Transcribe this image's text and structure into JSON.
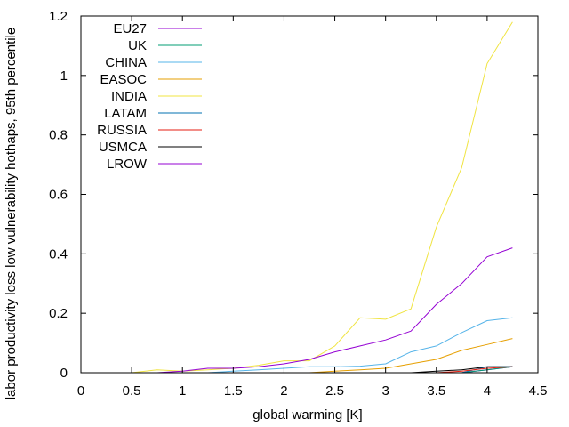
{
  "chart_data": {
    "type": "line",
    "title": "",
    "xlabel": "global warming [K]",
    "ylabel": "labor productivity loss low vulnerability hothaps, 95th percentile",
    "xlim": [
      0,
      4.5
    ],
    "ylim": [
      0,
      1.2
    ],
    "xticks": [
      0,
      0.5,
      1,
      1.5,
      2,
      2.5,
      3,
      3.5,
      4,
      4.5
    ],
    "xtick_labels": [
      "0",
      "0.5",
      "1",
      "1.5",
      "2",
      "2.5",
      "3",
      "3.5",
      "4",
      "4.5"
    ],
    "yticks": [
      0,
      0.2,
      0.4,
      0.6,
      0.8,
      1,
      1.2
    ],
    "ytick_labels": [
      "0",
      "0.2",
      "0.4",
      "0.6",
      "0.8",
      "1",
      "1.2"
    ],
    "legend_position": "top-left",
    "grid": false,
    "x": [
      0,
      0.25,
      0.5,
      0.75,
      1,
      1.25,
      1.5,
      1.75,
      2,
      2.25,
      2.5,
      2.75,
      3,
      3.25,
      3.5,
      3.75,
      4,
      4.25
    ],
    "series": [
      {
        "name": "EU27",
        "color": "#9400d3",
        "values": [
          0,
          0,
          0,
          0,
          0,
          0,
          0,
          0,
          0,
          0,
          0,
          0,
          0,
          0,
          0,
          0,
          0.01,
          0.02
        ]
      },
      {
        "name": "UK",
        "color": "#009e73",
        "values": [
          0,
          0,
          0,
          0,
          0,
          0,
          0,
          0,
          0,
          0,
          0,
          0,
          0,
          0,
          0,
          0,
          0.01,
          0.02
        ]
      },
      {
        "name": "CHINA",
        "color": "#56b4e9",
        "values": [
          0,
          0,
          0,
          0,
          0,
          0,
          0.005,
          0.01,
          0.015,
          0.02,
          0.02,
          0.022,
          0.03,
          0.07,
          0.09,
          0.135,
          0.175,
          0.185
        ]
      },
      {
        "name": "EASOC",
        "color": "#e69f00",
        "values": [
          0,
          0,
          0,
          0,
          0,
          0,
          0,
          0,
          0,
          0,
          0.005,
          0.01,
          0.015,
          0.03,
          0.045,
          0.075,
          0.095,
          0.115
        ]
      },
      {
        "name": "INDIA",
        "color": "#f0e442",
        "values": [
          0,
          0,
          0,
          0.01,
          0.005,
          0.01,
          0.015,
          0.025,
          0.04,
          0.04,
          0.09,
          0.185,
          0.18,
          0.215,
          0.49,
          0.69,
          1.04,
          1.18
        ]
      },
      {
        "name": "LATAM",
        "color": "#0072b2",
        "values": [
          0,
          0,
          0,
          0,
          0,
          0,
          0,
          0,
          0,
          0,
          0,
          0,
          0,
          0,
          0,
          0,
          0.02,
          0.02
        ]
      },
      {
        "name": "RUSSIA",
        "color": "#e51e10",
        "values": [
          0,
          0,
          0,
          0,
          0,
          0,
          0,
          0,
          0,
          0,
          0,
          0,
          0,
          0,
          0,
          0.005,
          0.015,
          0.02
        ]
      },
      {
        "name": "USMCA",
        "color": "#000000",
        "values": [
          0,
          0,
          0,
          0,
          0,
          0,
          0,
          0,
          0,
          0,
          0,
          0,
          0,
          0,
          0.005,
          0.01,
          0.02,
          0.02
        ]
      },
      {
        "name": "LROW",
        "color": "#9400d3",
        "values": [
          0,
          0,
          0,
          0,
          0.005,
          0.015,
          0.015,
          0.02,
          0.03,
          0.045,
          0.07,
          0.09,
          0.11,
          0.14,
          0.23,
          0.3,
          0.39,
          0.42
        ]
      }
    ]
  }
}
